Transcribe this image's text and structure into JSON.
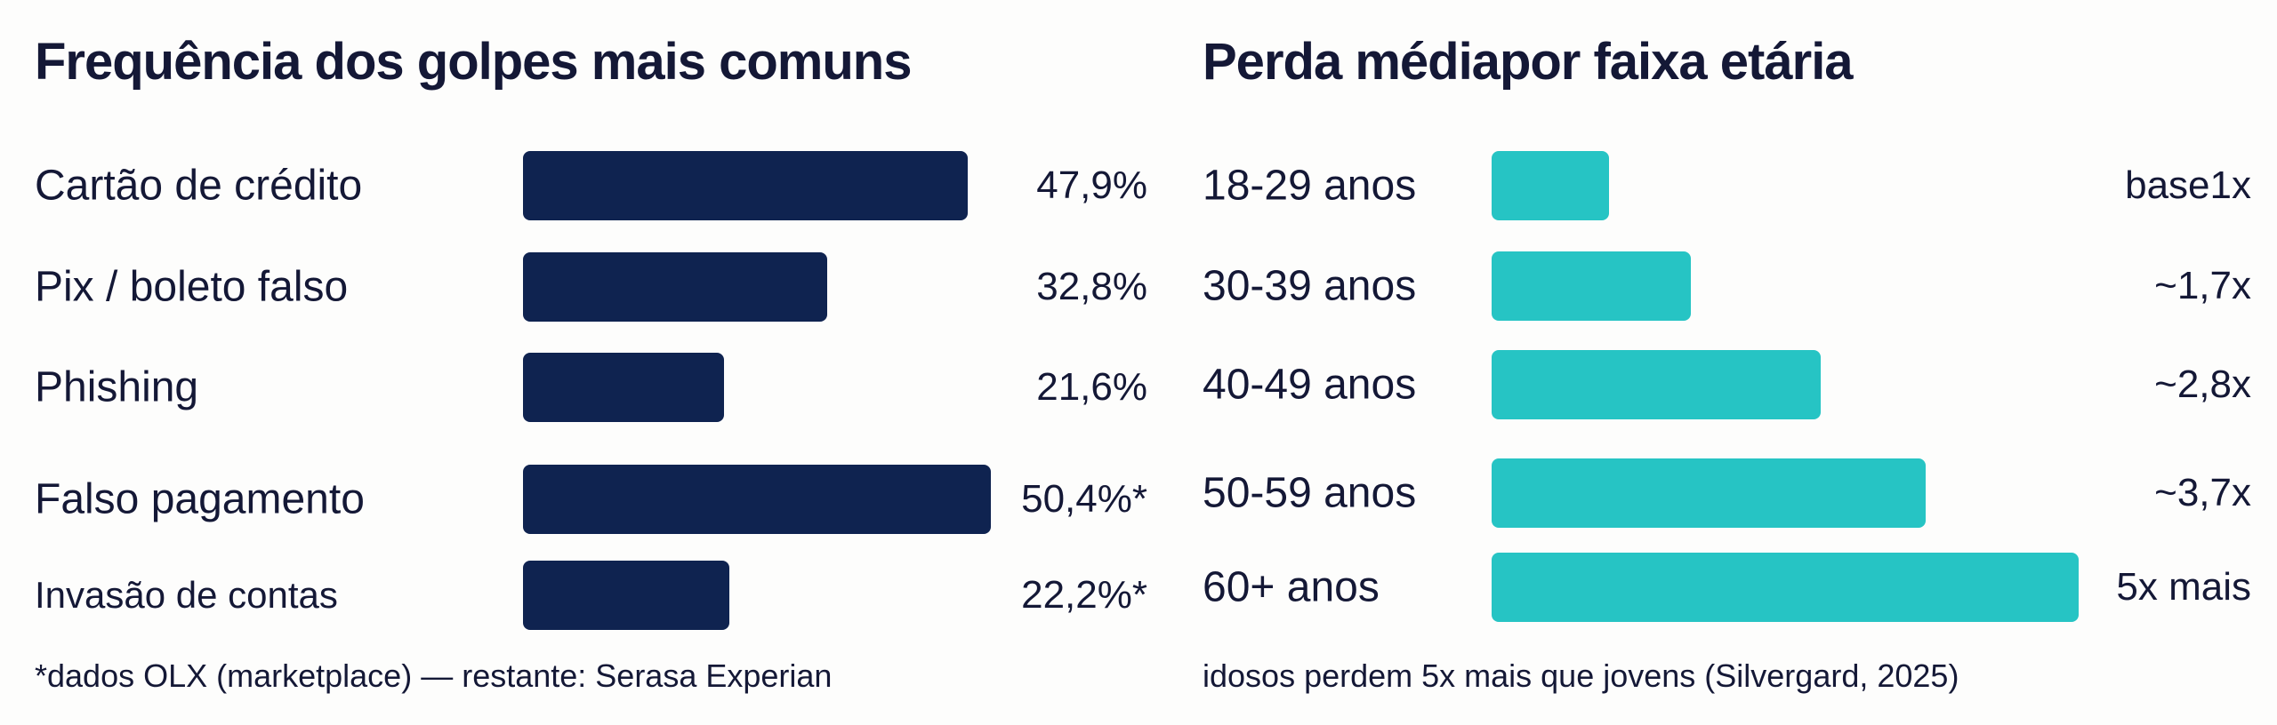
{
  "chart_data": [
    {
      "type": "bar",
      "orientation": "horizontal",
      "title": "Frequência dos golpes mais comuns",
      "categories": [
        "Cartão de crédito",
        "Pix / boleto falso",
        "Phishing",
        "Falso pagamento",
        "Invasão de contas"
      ],
      "values": [
        47.9,
        32.8,
        21.6,
        50.4,
        22.2
      ],
      "labels": [
        "47,9%",
        "32,8%",
        "21,6%",
        "50,4%*",
        "22,2%*"
      ],
      "color": "#0f2350",
      "footnote": "*dados OLX (marketplace) — restante: Serasa Experian"
    },
    {
      "type": "bar",
      "orientation": "horizontal",
      "title": "Perda médiapor faixa etária",
      "categories": [
        "18-29 anos",
        "30-39 anos",
        "40-49 anos",
        "50-59 anos",
        "60+ anos"
      ],
      "values": [
        1,
        1.7,
        2.8,
        3.7,
        5
      ],
      "labels": [
        "base1x",
        "~1,7x",
        "~2,8x",
        "~3,7x",
        "5x mais"
      ],
      "color": "#26c4c4",
      "footnote": "idosos perdem 5x mais que jovens (Silvergard, 2025)"
    }
  ]
}
